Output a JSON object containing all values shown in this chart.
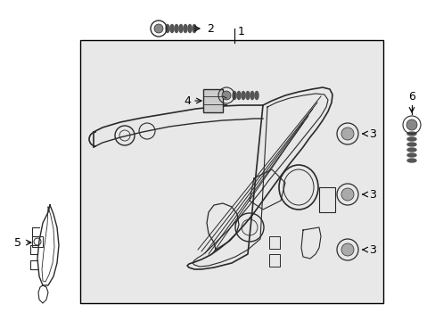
{
  "background_color": "#ffffff",
  "box_bg_color": "#e8e8e8",
  "line_color": "#000000",
  "part_line_color": "#2a2a2a",
  "figsize": [
    4.89,
    3.6
  ],
  "dpi": 100
}
